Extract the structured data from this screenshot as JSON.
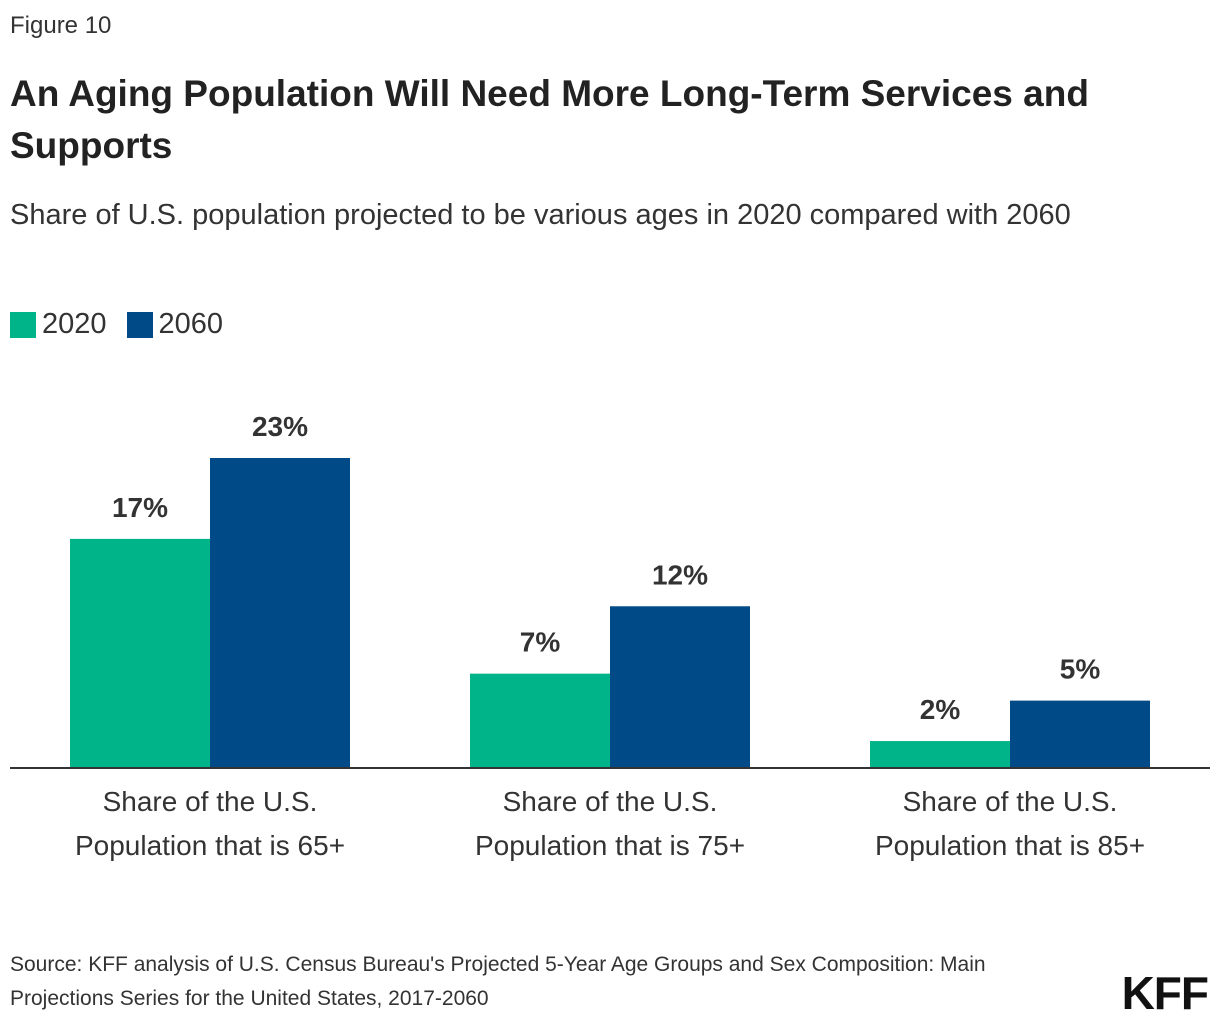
{
  "figure_label": "Figure 10",
  "chart_data": {
    "type": "bar",
    "title": "An Aging Population Will Need More Long-Term Services and Supports",
    "subtitle": "Share of U.S. population projected to be various ages in 2020 compared with 2060",
    "categories": [
      "Share of the U.S. Population that is 65+",
      "Share of the U.S. Population that is 75+",
      "Share of the U.S. Population that is 85+"
    ],
    "series": [
      {
        "name": "2020",
        "color": "#00b48a",
        "values": [
          17,
          7,
          2
        ],
        "value_labels": [
          "17%",
          "7%",
          "2%"
        ]
      },
      {
        "name": "2060",
        "color": "#004a87",
        "values": [
          23,
          12,
          5
        ],
        "value_labels": [
          "23%",
          "12%",
          "5%"
        ]
      }
    ],
    "legend": "top-left"
  },
  "source": "Source: KFF analysis of U.S. Census Bureau's Projected 5-Year Age Groups and Sex Composition: Main Projections Series for the United States, 2017-2060",
  "logo": "KFF"
}
